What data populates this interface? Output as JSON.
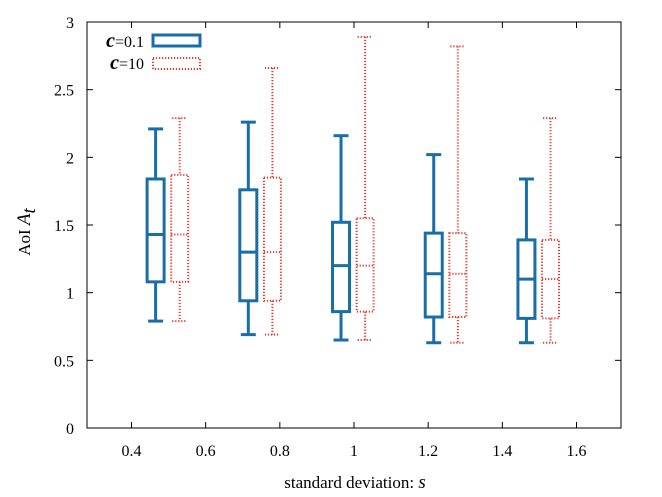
{
  "chart_data": {
    "type": "boxplot",
    "xlabel": {
      "text": "standard deviation: ",
      "symbol": "s"
    },
    "ylabel": {
      "text": "AoI ",
      "symbol": "A",
      "subscript": "t"
    },
    "xlim": [
      0.28,
      1.72
    ],
    "ylim": [
      0,
      3
    ],
    "xticks": [
      0.4,
      0.6,
      0.8,
      1,
      1.2,
      1.4,
      1.6
    ],
    "xtick_labels": [
      "0.4",
      "0.6",
      "0.8",
      "1",
      "1.2",
      "1.4",
      "1.6"
    ],
    "yticks": [
      0,
      0.5,
      1,
      1.5,
      2,
      2.5,
      3
    ],
    "ytick_labels": [
      "0",
      "0.5",
      "1",
      "1.5",
      "2",
      "2.5",
      "3"
    ],
    "grid": false,
    "legend_position": "top-left",
    "series": [
      {
        "name": "c=0.1",
        "legend_symbol": "c",
        "legend_value": "=0.1",
        "color": "#1a6ea8",
        "style": "solid",
        "boxes": [
          {
            "x": 0.465,
            "min": 0.79,
            "q1": 1.08,
            "median": 1.43,
            "q3": 1.84,
            "max": 2.21
          },
          {
            "x": 0.715,
            "min": 0.69,
            "q1": 0.94,
            "median": 1.3,
            "q3": 1.76,
            "max": 2.26
          },
          {
            "x": 0.965,
            "min": 0.65,
            "q1": 0.86,
            "median": 1.2,
            "q3": 1.52,
            "max": 2.16
          },
          {
            "x": 1.215,
            "min": 0.63,
            "q1": 0.82,
            "median": 1.14,
            "q3": 1.44,
            "max": 2.02
          },
          {
            "x": 1.465,
            "min": 0.63,
            "q1": 0.81,
            "median": 1.1,
            "q3": 1.39,
            "max": 1.84
          }
        ]
      },
      {
        "name": "c=10",
        "legend_symbol": "c",
        "legend_value": "=10",
        "color": "#e23a33",
        "style": "dotted",
        "boxes": [
          {
            "x": 0.53,
            "min": 0.79,
            "q1": 1.08,
            "median": 1.43,
            "q3": 1.87,
            "max": 2.29
          },
          {
            "x": 0.78,
            "min": 0.69,
            "q1": 0.94,
            "median": 1.3,
            "q3": 1.85,
            "max": 2.66
          },
          {
            "x": 1.03,
            "min": 0.65,
            "q1": 0.86,
            "median": 1.2,
            "q3": 1.55,
            "max": 2.89
          },
          {
            "x": 1.28,
            "min": 0.63,
            "q1": 0.82,
            "median": 1.14,
            "q3": 1.44,
            "max": 2.82
          },
          {
            "x": 1.53,
            "min": 0.63,
            "q1": 0.81,
            "median": 1.1,
            "q3": 1.39,
            "max": 2.29
          }
        ]
      }
    ]
  }
}
